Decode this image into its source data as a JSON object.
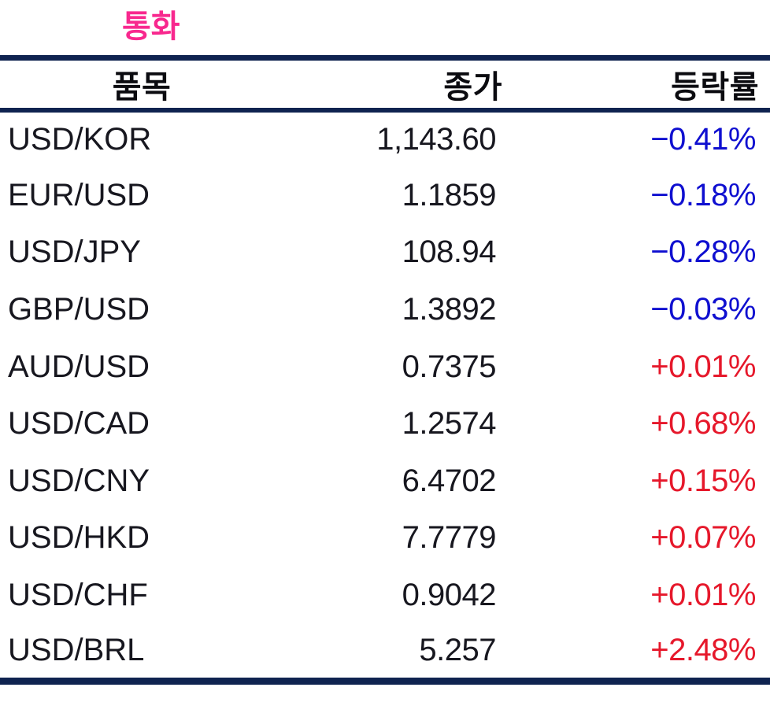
{
  "title": {
    "text": "통화"
  },
  "colors": {
    "title_pink": "#F8288E",
    "rule_navy": "#0F2350",
    "negative_blue": "#0F0FD0",
    "positive_red": "#E6182B",
    "body_text": "#17171F"
  },
  "table": {
    "headers": [
      {
        "label": "품목"
      },
      {
        "label": "종가"
      },
      {
        "label": "등락률"
      }
    ],
    "rows": [
      {
        "item": "USD/KOR",
        "close": "1,143.60",
        "change": "−0.41%",
        "direction": "down"
      },
      {
        "item": "EUR/USD",
        "close": "1.1859",
        "change": "−0.18%",
        "direction": "down"
      },
      {
        "item": "USD/JPY",
        "close": "108.94",
        "change": "−0.28%",
        "direction": "down"
      },
      {
        "item": "GBP/USD",
        "close": "1.3892",
        "change": "−0.03%",
        "direction": "down"
      },
      {
        "item": "AUD/USD",
        "close": "0.7375",
        "change": "+0.01%",
        "direction": "up"
      },
      {
        "item": "USD/CAD",
        "close": "1.2574",
        "change": "+0.68%",
        "direction": "up"
      },
      {
        "item": "USD/CNY",
        "close": "6.4702",
        "change": "+0.15%",
        "direction": "up"
      },
      {
        "item": "USD/HKD",
        "close": "7.7779",
        "change": "+0.07%",
        "direction": "up"
      },
      {
        "item": "USD/CHF",
        "close": "0.9042",
        "change": "+0.01%",
        "direction": "up"
      },
      {
        "item": "USD/BRL",
        "close": "5.257",
        "change": "+2.48%",
        "direction": "up"
      }
    ]
  }
}
